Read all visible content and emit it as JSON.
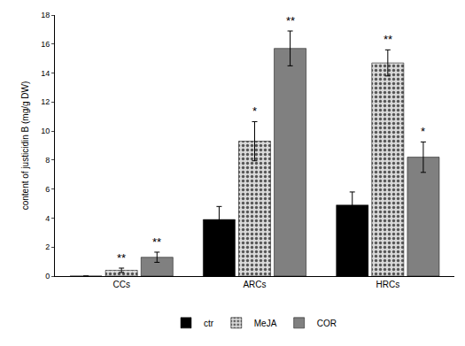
{
  "chart_data": {
    "type": "bar",
    "y_label": "content of justicidin B (mg/g DW)",
    "categories": [
      "CCs",
      "ARCs",
      "HRCs"
    ],
    "series": [
      {
        "name": "ctr",
        "color": "#000000",
        "values": [
          0,
          3.9,
          4.9
        ],
        "error": [
          0,
          0.9,
          0.9
        ],
        "significance": [
          null,
          null,
          null
        ]
      },
      {
        "name": "MeJA",
        "color": "#d9d9d9",
        "marker": "dots",
        "values": [
          0.4,
          9.3,
          14.7
        ],
        "error": [
          0.15,
          1.35,
          0.9
        ],
        "significance": [
          "**",
          "*",
          "**"
        ]
      },
      {
        "name": "COR",
        "color": "#808080",
        "values": [
          1.3,
          15.7,
          8.2
        ],
        "error": [
          0.35,
          1.2,
          1.05
        ],
        "significance": [
          "**",
          "**",
          "*"
        ]
      }
    ],
    "ylim": [
      0,
      18
    ],
    "yticks": [
      0,
      2,
      4,
      6,
      8,
      10,
      12,
      14,
      16,
      18
    ],
    "grid": false,
    "legend": "bottom"
  }
}
